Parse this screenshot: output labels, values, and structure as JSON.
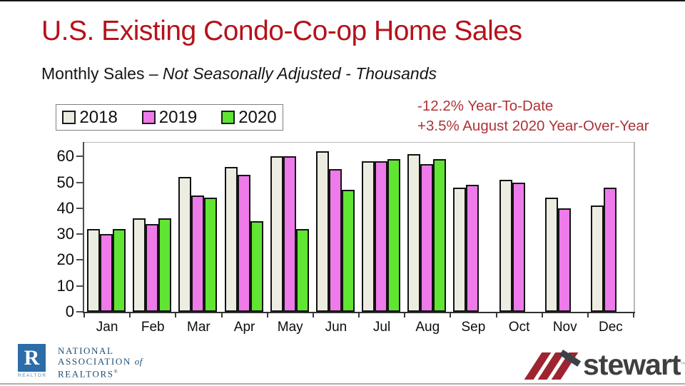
{
  "header": {
    "title": "U.S. Existing Condo-Co-op Home Sales",
    "subtitle_regular": "Monthly Sales – ",
    "subtitle_italic": "Not Seasonally Adjusted - Thousands"
  },
  "annotations": {
    "line1": "-12.2% Year-To-Date",
    "line2": "+3.5% August 2020 Year-Over-Year",
    "color": "#AE3338"
  },
  "chart_data": {
    "type": "bar",
    "title": "U.S. Existing Condo-Co-op Home Sales",
    "subtitle": "Monthly Sales – Not Seasonally Adjusted - Thousands",
    "categories": [
      "Jan",
      "Feb",
      "Mar",
      "Apr",
      "May",
      "Jun",
      "Jul",
      "Aug",
      "Sep",
      "Oct",
      "Nov",
      "Dec"
    ],
    "series": [
      {
        "name": "2018",
        "color": "#ECECE1",
        "values": [
          32,
          36,
          52,
          56,
          60,
          62,
          58,
          61,
          48,
          51,
          44,
          41
        ]
      },
      {
        "name": "2019",
        "color": "#EE7BE9",
        "values": [
          30,
          34,
          45,
          53,
          60,
          55,
          58,
          57,
          49,
          50,
          40,
          48
        ]
      },
      {
        "name": "2020",
        "color": "#5FE532",
        "values": [
          32,
          36,
          44,
          35,
          32,
          47,
          59,
          59,
          null,
          null,
          null,
          null
        ]
      }
    ],
    "xlabel": "",
    "ylabel": "",
    "y_ticks": [
      0,
      10,
      20,
      30,
      40,
      50,
      60
    ],
    "ylim": [
      0,
      65.3
    ],
    "grid": false,
    "legend_position": "top-left",
    "bar_border_color": "#131313"
  },
  "footer": {
    "nar": {
      "line1": "NATIONAL",
      "line2_caps": "ASSOCIATION ",
      "line2_of": "of",
      "line3": "REALTORS",
      "reg_mark": "®",
      "badge_letter": "R",
      "badge_caption": "REALTOR"
    },
    "stewart": {
      "name": "stewart",
      "tm": "™"
    }
  }
}
